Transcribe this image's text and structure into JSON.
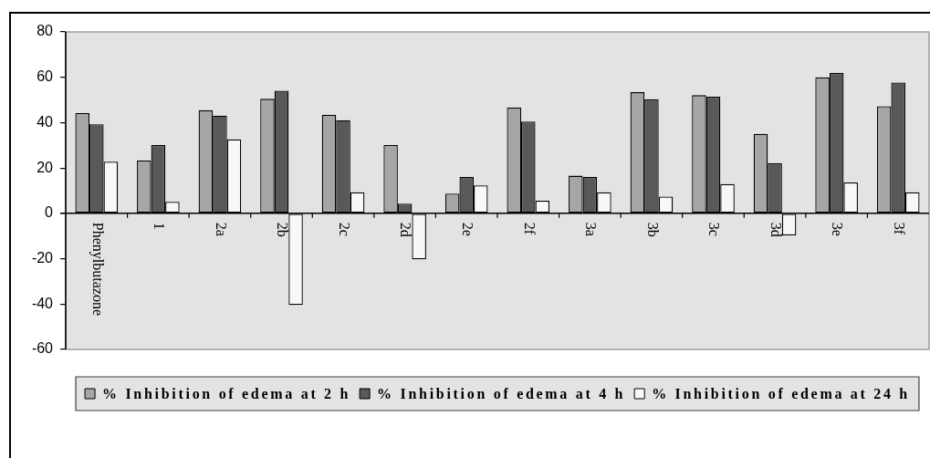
{
  "chart_data": {
    "type": "bar",
    "categories": [
      "Phenylbutazone",
      "1",
      "2a",
      "2b",
      "2c",
      "2d",
      "2e",
      "2f",
      "3a",
      "3b",
      "3c",
      "3d",
      "3e",
      "3f"
    ],
    "series": [
      {
        "name": "% Inhibition of edema at 2 h",
        "color": "#a6a6a6",
        "values": [
          44.2,
          23.4,
          45.5,
          50.5,
          43.5,
          30.1,
          8.7,
          46.7,
          16.6,
          53.4,
          52.1,
          35.0,
          60.0,
          47.2
        ]
      },
      {
        "name": "% Inhibition of edema at 4 h",
        "color": "#595959",
        "values": [
          39.3,
          30.1,
          43.1,
          54.1,
          41.1,
          4.3,
          16.0,
          40.5,
          16.0,
          50.3,
          51.4,
          22.1,
          61.9,
          57.7
        ]
      },
      {
        "name": "% Inhibition of edema at 24 h",
        "color": "#f8f8f8",
        "values": [
          22.8,
          5.1,
          32.6,
          -40.4,
          9.3,
          -20.3,
          12.3,
          5.6,
          9.3,
          7.4,
          12.9,
          -9.7,
          13.6,
          9.3
        ]
      }
    ],
    "ylim": [
      -60,
      80
    ],
    "yticks": [
      -60,
      -40,
      -20,
      0,
      20,
      40,
      60,
      80
    ],
    "legend": "bottom"
  }
}
